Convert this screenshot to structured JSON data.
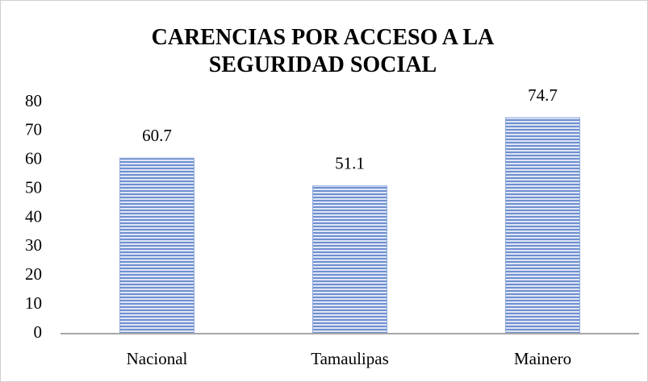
{
  "chart_data": {
    "type": "bar",
    "title": "CARENCIAS POR ACCESO A LA SEGURIDAD SOCIAL",
    "categories": [
      "Nacional",
      "Tamaulipas",
      "Mainero"
    ],
    "values": [
      60.7,
      51.1,
      74.7
    ],
    "color": "#5b80c9",
    "ylim": [
      0,
      80
    ],
    "yticks": [
      0,
      10,
      20,
      30,
      40,
      50,
      60,
      70,
      80
    ],
    "grid": false
  }
}
